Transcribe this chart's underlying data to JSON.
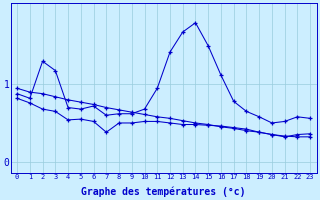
{
  "xlabel": "Graphe des températures (°c)",
  "bg_color": "#cceeff",
  "line_color": "#0000cc",
  "grid_color": "#99ccdd",
  "x": [
    0,
    1,
    2,
    3,
    4,
    5,
    6,
    7,
    8,
    9,
    10,
    11,
    12,
    13,
    14,
    15,
    16,
    17,
    18,
    19,
    20,
    21,
    22,
    23
  ],
  "line1": [
    0.88,
    0.82,
    1.3,
    1.18,
    0.7,
    0.68,
    0.72,
    0.6,
    0.62,
    0.62,
    0.68,
    0.95,
    1.42,
    1.68,
    1.8,
    1.5,
    1.12,
    0.78,
    0.65,
    0.58,
    0.5,
    0.52,
    0.58,
    0.56
  ],
  "line2": [
    0.95,
    0.9,
    0.88,
    0.84,
    0.8,
    0.77,
    0.74,
    0.7,
    0.67,
    0.64,
    0.61,
    0.58,
    0.56,
    0.53,
    0.5,
    0.48,
    0.45,
    0.43,
    0.4,
    0.38,
    0.35,
    0.33,
    0.32,
    0.32
  ],
  "line3": [
    0.82,
    0.76,
    0.68,
    0.65,
    0.54,
    0.55,
    0.52,
    0.38,
    0.5,
    0.5,
    0.52,
    0.52,
    0.5,
    0.48,
    0.48,
    0.47,
    0.46,
    0.44,
    0.42,
    0.38,
    0.35,
    0.32,
    0.35,
    0.36
  ],
  "ylim": [
    -0.15,
    2.05
  ],
  "yticks": [
    0,
    1
  ],
  "xlim": [
    -0.5,
    23.5
  ]
}
